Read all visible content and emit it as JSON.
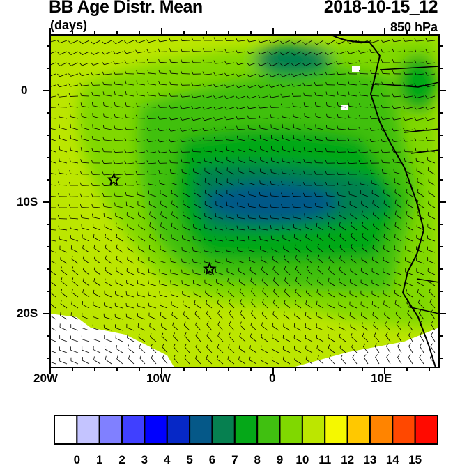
{
  "header": {
    "title": "BB Age Distr. Mean",
    "units": "(days)",
    "datetime": "2018-10-15_12",
    "level": "850 hPa"
  },
  "map": {
    "lon_range": [
      "20W",
      "15E"
    ],
    "lat_range": [
      "25S",
      "5N"
    ],
    "x_tick_labels": [
      "20W",
      "10W",
      "0",
      "10E"
    ],
    "y_tick_labels": [
      "0",
      "10S",
      "20S"
    ],
    "overlay": "wind-barbs",
    "markers": [
      {
        "type": "star",
        "lon": -14.3,
        "lat": -8
      },
      {
        "type": "star",
        "lon": -5.7,
        "lat": -16
      }
    ]
  },
  "colorbar": {
    "labels": [
      "0",
      "1",
      "2",
      "3",
      "4",
      "5",
      "6",
      "7",
      "8",
      "9",
      "10",
      "11",
      "12",
      "13",
      "14",
      "15"
    ],
    "colors": [
      "#ffffff",
      "#c4c4ff",
      "#8080ff",
      "#4040ff",
      "#0000ff",
      "#0628c6",
      "#055888",
      "#068050",
      "#05a818",
      "#40c010",
      "#80d800",
      "#bce600",
      "#f5f800",
      "#ffc800",
      "#ff8400",
      "#ff4800",
      "#ff0a00"
    ]
  }
}
